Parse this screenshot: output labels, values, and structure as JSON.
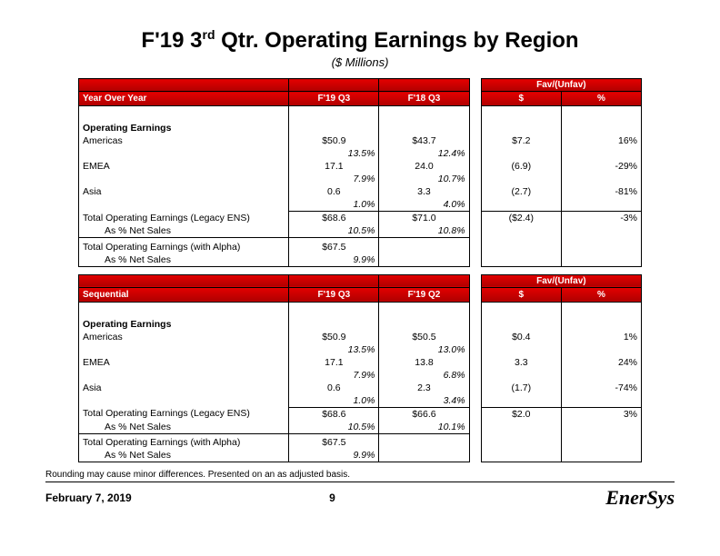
{
  "title_line": "F'19 3",
  "title_sup": "rd",
  "title_rest": " Qtr. Operating Earnings by Region",
  "subtitle": "($ Millions)",
  "footnote": "Rounding may cause minor differences. Presented on an as adjusted basis.",
  "footer": {
    "date": "February 7, 2019",
    "page": "9",
    "logo": "EnerSys"
  },
  "tables": [
    {
      "label": "Year Over Year",
      "col1": "F'19 Q3",
      "col2": "F'18 Q3",
      "fav_label": "Fav/(Unfav)",
      "dollar": "$",
      "percent": "%",
      "section": "Operating Earnings",
      "rows": [
        {
          "name": "Americas",
          "v1": "$50.9",
          "p1": "13.5%",
          "v2": "$43.7",
          "p2": "12.4%",
          "d": "$7.2",
          "pct": "16%"
        },
        {
          "name": "EMEA",
          "v1": "17.1",
          "p1": "7.9%",
          "v2": "24.0",
          "p2": "10.7%",
          "d": "(6.9)",
          "pct": "-29%"
        },
        {
          "name": "Asia",
          "v1": "0.6",
          "p1": "1.0%",
          "v2": "3.3",
          "p2": "4.0%",
          "d": "(2.7)",
          "pct": "-81%",
          "underline": true
        }
      ],
      "totals": [
        {
          "name": "Total Operating Earnings (Legacy ENS)",
          "sub": "As % Net Sales",
          "v1": "$68.6",
          "p1": "10.5%",
          "v2": "$71.0",
          "p2": "10.8%",
          "d": "($2.4)",
          "pct": "-3%"
        },
        {
          "name": "Total Operating Earnings (with Alpha)",
          "sub": "As % Net Sales",
          "v1": "$67.5",
          "p1": "9.9%",
          "v2": "",
          "p2": "",
          "d": "",
          "pct": "",
          "last": true
        }
      ]
    },
    {
      "label": "Sequential",
      "col1": "F'19 Q3",
      "col2": "F'19 Q2",
      "fav_label": "Fav/(Unfav)",
      "dollar": "$",
      "percent": "%",
      "section": "Operating Earnings",
      "rows": [
        {
          "name": "Americas",
          "v1": "$50.9",
          "p1": "13.5%",
          "v2": "$50.5",
          "p2": "13.0%",
          "d": "$0.4",
          "pct": "1%"
        },
        {
          "name": "EMEA",
          "v1": "17.1",
          "p1": "7.9%",
          "v2": "13.8",
          "p2": "6.8%",
          "d": "3.3",
          "pct": "24%"
        },
        {
          "name": "Asia",
          "v1": "0.6",
          "p1": "1.0%",
          "v2": "2.3",
          "p2": "3.4%",
          "d": "(1.7)",
          "pct": "-74%",
          "underline": true
        }
      ],
      "totals": [
        {
          "name": "Total Operating Earnings (Legacy ENS)",
          "sub": "As % Net Sales",
          "v1": "$68.6",
          "p1": "10.5%",
          "v2": "$66.6",
          "p2": "10.1%",
          "d": "$2.0",
          "pct": "3%"
        },
        {
          "name": "Total Operating Earnings (with Alpha)",
          "sub": "As % Net Sales",
          "v1": "$67.5",
          "p1": "9.9%",
          "v2": "",
          "p2": "",
          "d": "",
          "pct": "",
          "last": true
        }
      ]
    }
  ],
  "colw": {
    "name": 210,
    "val": 90,
    "gap": 12,
    "fav": 80
  },
  "colors": {
    "red_top": "#e40000",
    "red_bot": "#b00000"
  }
}
